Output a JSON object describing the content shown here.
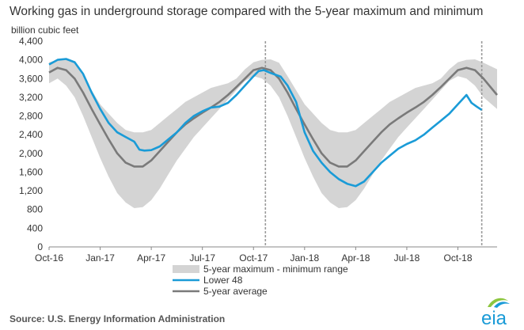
{
  "title": "Working gas in underground  storage compared with the 5-year maximum and minimum",
  "source": "Source:  U.S. Energy Information Administration",
  "logo_text": "eia",
  "colors": {
    "range": "#d4d4d4",
    "lower48": "#1a9bd7",
    "average": "#7a7a7a",
    "divider": "#9a9a9a",
    "logo_blue": "#1a9bd7",
    "logo_green": "#8dc63f"
  },
  "chart_data": {
    "type": "area",
    "ylabel": "billion cubic feet",
    "ylim": [
      0,
      4400
    ],
    "yticks": [
      0,
      400,
      800,
      1200,
      1600,
      2000,
      2400,
      2800,
      3200,
      3600,
      4000,
      4400
    ],
    "ytick_labels": [
      "0",
      "400",
      "800",
      "1,200",
      "1,600",
      "2,000",
      "2,400",
      "2,800",
      "3,200",
      "3,600",
      "4,000",
      "4,400"
    ],
    "xticks": [
      {
        "label": "Oct-16",
        "x": 0
      },
      {
        "label": "Jan-17",
        "x": 3
      },
      {
        "label": "Apr-17",
        "x": 6
      },
      {
        "label": "Jul-17",
        "x": 9
      },
      {
        "label": "Oct-17",
        "x": 12
      },
      {
        "label": "Jan-18",
        "x": 15
      },
      {
        "label": "Apr-18",
        "x": 18
      },
      {
        "label": "Jul-18",
        "x": 21
      },
      {
        "label": "Oct-18",
        "x": 24
      }
    ],
    "xlim": [
      0,
      26.3
    ],
    "x_unit": "months since Oct-16",
    "dividers": [
      12.7,
      25.4
    ],
    "legend": [
      {
        "name": "5-year maximum - minimum range",
        "kind": "range"
      },
      {
        "name": "Lower 48",
        "kind": "lower48"
      },
      {
        "name": "5-year average",
        "kind": "average"
      }
    ],
    "series": [
      {
        "name": "5-year maximum",
        "x": [
          0,
          0.5,
          1,
          1.5,
          2,
          2.5,
          3,
          3.5,
          4,
          4.5,
          5,
          5.5,
          6,
          6.5,
          7,
          7.5,
          8,
          8.5,
          9,
          9.5,
          10,
          10.5,
          11,
          11.5,
          12,
          12.5,
          13,
          13.5,
          14,
          14.5,
          15,
          15.5,
          16,
          16.5,
          17,
          17.5,
          18,
          18.5,
          19,
          19.5,
          20,
          20.5,
          21,
          21.5,
          22,
          22.5,
          23,
          23.5,
          24,
          24.5,
          25,
          25.5,
          26.3
        ],
        "values": [
          3950,
          4000,
          4010,
          3940,
          3650,
          3350,
          3050,
          2850,
          2650,
          2500,
          2450,
          2450,
          2500,
          2650,
          2800,
          2950,
          3100,
          3200,
          3300,
          3400,
          3450,
          3500,
          3600,
          3800,
          3950,
          4000,
          4010,
          3940,
          3650,
          3350,
          3050,
          2850,
          2650,
          2500,
          2450,
          2450,
          2500,
          2650,
          2800,
          2950,
          3100,
          3200,
          3300,
          3400,
          3450,
          3500,
          3600,
          3800,
          3950,
          4000,
          4010,
          3940,
          3800
        ]
      },
      {
        "name": "5-year minimum",
        "x": [
          0,
          0.5,
          1,
          1.5,
          2,
          2.5,
          3,
          3.5,
          4,
          4.5,
          5,
          5.5,
          6,
          6.5,
          7,
          7.5,
          8,
          8.5,
          9,
          9.5,
          10,
          10.5,
          11,
          11.5,
          12,
          12.5,
          13,
          13.5,
          14,
          14.5,
          15,
          15.5,
          16,
          16.5,
          17,
          17.5,
          18,
          18.5,
          19,
          19.5,
          20,
          20.5,
          21,
          21.5,
          22,
          22.5,
          23,
          23.5,
          24,
          24.5,
          25,
          25.5,
          26.3
        ],
        "values": [
          3500,
          3600,
          3450,
          3200,
          2800,
          2350,
          1900,
          1500,
          1150,
          950,
          830,
          850,
          1000,
          1250,
          1550,
          1850,
          2100,
          2350,
          2550,
          2750,
          2950,
          3150,
          3350,
          3550,
          3650,
          3600,
          3450,
          3200,
          2800,
          2350,
          1900,
          1500,
          1150,
          950,
          830,
          850,
          1000,
          1250,
          1550,
          1850,
          2100,
          2350,
          2550,
          2750,
          2950,
          3150,
          3350,
          3550,
          3650,
          3600,
          3450,
          3200,
          2950
        ]
      },
      {
        "name": "Lower 48",
        "x": [
          0,
          0.5,
          1,
          1.5,
          2,
          2.5,
          3,
          3.5,
          4,
          4.5,
          5,
          5.3,
          5.6,
          6,
          6.5,
          7,
          7.5,
          8,
          8.5,
          9,
          9.5,
          10,
          10.5,
          11,
          11.5,
          12,
          12.3,
          12.6,
          13,
          13.3,
          13.6,
          14,
          14.5,
          15,
          15.5,
          16,
          16.5,
          17,
          17.5,
          18,
          18.5,
          19,
          19.5,
          20,
          20.5,
          21,
          21.5,
          22,
          22.5,
          23,
          23.5,
          24,
          24.5,
          24.8,
          25.1,
          25.4
        ],
        "values": [
          3900,
          4000,
          4020,
          3950,
          3700,
          3300,
          2950,
          2650,
          2450,
          2350,
          2250,
          2080,
          2060,
          2070,
          2150,
          2300,
          2450,
          2650,
          2800,
          2900,
          2980,
          3000,
          3080,
          3250,
          3450,
          3650,
          3760,
          3780,
          3720,
          3680,
          3640,
          3450,
          3100,
          2450,
          2050,
          1800,
          1600,
          1450,
          1350,
          1300,
          1400,
          1600,
          1800,
          1950,
          2100,
          2200,
          2280,
          2400,
          2550,
          2700,
          2850,
          3050,
          3250,
          3080,
          3000,
          2930
        ]
      },
      {
        "name": "5-year average",
        "x": [
          0,
          0.5,
          1,
          1.5,
          2,
          2.5,
          3,
          3.5,
          4,
          4.5,
          5,
          5.5,
          6,
          6.5,
          7,
          7.5,
          8,
          8.5,
          9,
          9.5,
          10,
          10.5,
          11,
          11.5,
          12,
          12.5,
          13,
          13.5,
          14,
          14.5,
          15,
          15.5,
          16,
          16.5,
          17,
          17.5,
          18,
          18.5,
          19,
          19.5,
          20,
          20.5,
          21,
          21.5,
          22,
          22.5,
          23,
          23.5,
          24,
          24.5,
          25,
          25.5,
          26.3
        ],
        "values": [
          3730,
          3830,
          3780,
          3600,
          3300,
          2950,
          2620,
          2300,
          2000,
          1800,
          1720,
          1720,
          1850,
          2050,
          2250,
          2450,
          2620,
          2750,
          2870,
          2980,
          3100,
          3250,
          3420,
          3600,
          3780,
          3830,
          3780,
          3600,
          3300,
          2950,
          2620,
          2300,
          2000,
          1800,
          1720,
          1720,
          1850,
          2050,
          2250,
          2450,
          2620,
          2750,
          2870,
          2980,
          3100,
          3250,
          3420,
          3600,
          3780,
          3830,
          3780,
          3600,
          3250
        ]
      }
    ]
  }
}
